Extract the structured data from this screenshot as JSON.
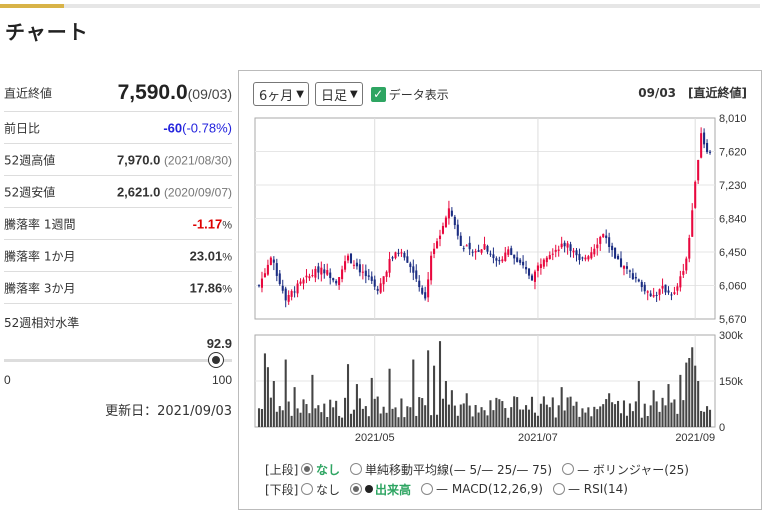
{
  "section_title": "チャート",
  "stats": {
    "latest_close": {
      "label": "直近終値",
      "value": "7,590.0",
      "date": "(09/03)"
    },
    "change": {
      "label": "前日比",
      "value": "-60",
      "pct": "(-0.78%)"
    },
    "high52": {
      "label": "52週高値",
      "value": "7,970.0",
      "date": "(2021/08/30)"
    },
    "low52": {
      "label": "52週安値",
      "value": "2,621.0",
      "date": "(2020/09/07)"
    },
    "r1w": {
      "label": "騰落率 1週間",
      "value": "-1.17",
      "unit": "%"
    },
    "r1m": {
      "label": "騰落率 1か月",
      "value": "23.01",
      "unit": "%"
    },
    "r3m": {
      "label": "騰落率 3か月",
      "value": "17.86",
      "unit": "%"
    },
    "relative": {
      "label": "52週相対水準",
      "value": "92.9",
      "level": 92.9,
      "min": "0",
      "max": "100"
    },
    "updated": "更新日：2021/09/03"
  },
  "toolbar": {
    "period": "6ヶ月",
    "interval": "日足",
    "show_data_label": "データ表示",
    "date": "09/03",
    "note": "[直近終値]"
  },
  "indicators": {
    "upper_tag": "[上段]",
    "lower_tag": "[下段]",
    "upper_options": [
      "なし",
      "単純移動平均線(— 5/— 25/— 75)",
      "— ボリンジャー(25)"
    ],
    "lower_options": [
      "なし",
      "出来高",
      "— MACD(12,26,9)",
      "— RSI(14)"
    ],
    "upper_selected": 0,
    "lower_selected": 1
  },
  "colors": {
    "up": "#e8083e",
    "down": "#1b2d82",
    "volume": "#444444",
    "accent": "#2ea562"
  },
  "chart_data": {
    "type": "candlestick",
    "x_labels": [
      "2021/05",
      "2021/07",
      "2021/09"
    ],
    "price_ticks": [
      "8,010",
      "7,620",
      "7,230",
      "6,840",
      "6,450",
      "6,060",
      "5,670"
    ],
    "price_range": [
      5670,
      8010
    ],
    "volume_ticks": [
      "300k",
      "150k",
      "0"
    ],
    "volume_range": [
      0,
      300000
    ],
    "close_path": [
      [
        0,
        6060
      ],
      [
        4,
        6380
      ],
      [
        9,
        5920
      ],
      [
        15,
        6110
      ],
      [
        21,
        6270
      ],
      [
        26,
        6120
      ],
      [
        30,
        6390
      ],
      [
        36,
        6170
      ],
      [
        40,
        5980
      ],
      [
        44,
        6350
      ],
      [
        48,
        6480
      ],
      [
        52,
        6230
      ],
      [
        56,
        5900
      ],
      [
        58,
        6420
      ],
      [
        61,
        6650
      ],
      [
        64,
        6970
      ],
      [
        68,
        6560
      ],
      [
        72,
        6420
      ],
      [
        76,
        6540
      ],
      [
        80,
        6330
      ],
      [
        84,
        6460
      ],
      [
        88,
        6300
      ],
      [
        92,
        6150
      ],
      [
        96,
        6400
      ],
      [
        100,
        6490
      ],
      [
        104,
        6560
      ],
      [
        108,
        6330
      ],
      [
        112,
        6460
      ],
      [
        116,
        6680
      ],
      [
        120,
        6360
      ],
      [
        124,
        6230
      ],
      [
        128,
        6120
      ],
      [
        132,
        5910
      ],
      [
        136,
        6020
      ],
      [
        140,
        5960
      ],
      [
        142,
        6140
      ],
      [
        144,
        6380
      ],
      [
        146,
        6900
      ],
      [
        147,
        7240
      ],
      [
        148,
        7560
      ],
      [
        149,
        7850
      ],
      [
        150,
        7720
      ],
      [
        151,
        7650
      ],
      [
        152,
        7590
      ]
    ],
    "volume_spikes": {
      "2": 240000,
      "3": 195000,
      "5": 150000,
      "9": 220000,
      "12": 130000,
      "18": 170000,
      "30": 205000,
      "33": 140000,
      "38": 160000,
      "44": 190000,
      "52": 220000,
      "57": 250000,
      "59": 200000,
      "61": 280000,
      "63": 150000,
      "65": 120000,
      "70": 110000,
      "80": 95000,
      "86": 100000,
      "102": 130000,
      "118": 110000,
      "128": 150000,
      "133": 120000,
      "138": 140000,
      "142": 170000,
      "144": 210000,
      "145": 225000,
      "146": 260000,
      "147": 200000,
      "148": 150000
    },
    "candle_count": 153
  }
}
